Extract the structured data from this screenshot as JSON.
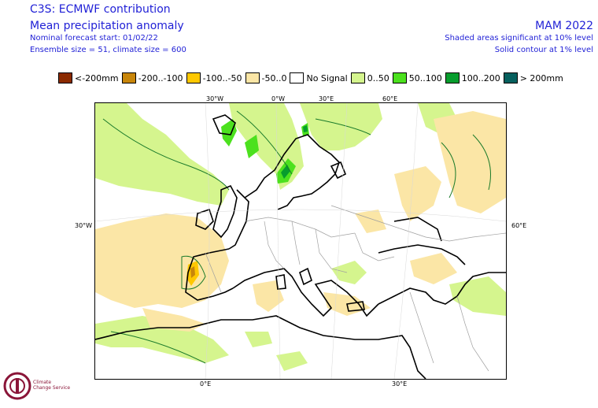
{
  "header": {
    "title": "C3S: ECMWF contribution",
    "subtitle": "Mean precipitation anomaly",
    "forecast_start": "Nominal forecast start: 01/02/22",
    "ensemble": "Ensemble size = 51, climate size = 600",
    "season": "MAM 2022",
    "significance_shaded": "Shaded areas significant at 10% level",
    "significance_contour": "Solid contour at 1% level"
  },
  "legend": [
    {
      "label": "<-200mm",
      "color": "#8b2a00"
    },
    {
      "label": "-200..-100",
      "color": "#c8860a"
    },
    {
      "label": "-100..-50",
      "color": "#ffc800"
    },
    {
      "label": "-50..0",
      "color": "#fbe6a6"
    },
    {
      "label": "No Signal",
      "color": "#ffffff"
    },
    {
      "label": "0..50",
      "color": "#d5f58e"
    },
    {
      "label": "50..100",
      "color": "#4ce11e"
    },
    {
      "label": "100..200",
      "color": "#079d2d"
    },
    {
      "label": "> 200mm",
      "color": "#06605e"
    }
  ],
  "axis_labels": {
    "top": [
      "30°W",
      "0°W",
      "30°E",
      "60°E"
    ],
    "left": "30°W",
    "right": "60°E",
    "bottom": [
      "0°E",
      "30°E"
    ]
  },
  "logo": {
    "line1": "Climate",
    "line2": "Change Service"
  },
  "colors": {
    "header_text": "#1f1fd6",
    "coast": "#000000",
    "border": "#a0a0a0",
    "contour": "#1a7a2a"
  }
}
